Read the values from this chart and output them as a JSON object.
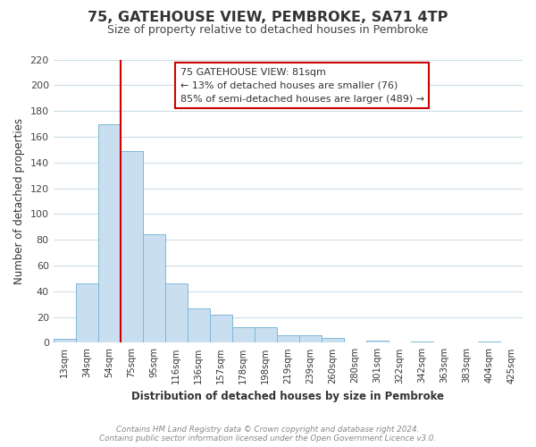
{
  "title": "75, GATEHOUSE VIEW, PEMBROKE, SA71 4TP",
  "subtitle": "Size of property relative to detached houses in Pembroke",
  "xlabel": "Distribution of detached houses by size in Pembroke",
  "ylabel": "Number of detached properties",
  "bar_labels": [
    "13sqm",
    "34sqm",
    "54sqm",
    "75sqm",
    "95sqm",
    "116sqm",
    "136sqm",
    "157sqm",
    "178sqm",
    "198sqm",
    "219sqm",
    "239sqm",
    "260sqm",
    "280sqm",
    "301sqm",
    "322sqm",
    "342sqm",
    "363sqm",
    "383sqm",
    "404sqm",
    "425sqm"
  ],
  "bar_values": [
    3,
    46,
    170,
    149,
    84,
    46,
    27,
    22,
    12,
    12,
    6,
    6,
    4,
    0,
    2,
    0,
    1,
    0,
    0,
    1,
    0
  ],
  "bar_color": "#c9dff0",
  "bar_edge_color": "#7db8d8",
  "vline_index": 3,
  "vline_color": "#cc0000",
  "ylim": [
    0,
    220
  ],
  "yticks": [
    0,
    20,
    40,
    60,
    80,
    100,
    120,
    140,
    160,
    180,
    200,
    220
  ],
  "annotation_title": "75 GATEHOUSE VIEW: 81sqm",
  "annotation_line1": "← 13% of detached houses are smaller (76)",
  "annotation_line2": "85% of semi-detached houses are larger (489) →",
  "annotation_box_color": "#ffffff",
  "annotation_box_edge": "#cc0000",
  "footer_line1": "Contains HM Land Registry data © Crown copyright and database right 2024.",
  "footer_line2": "Contains public sector information licensed under the Open Government Licence v3.0.",
  "background_color": "#ffffff",
  "grid_color": "#ccdde8"
}
